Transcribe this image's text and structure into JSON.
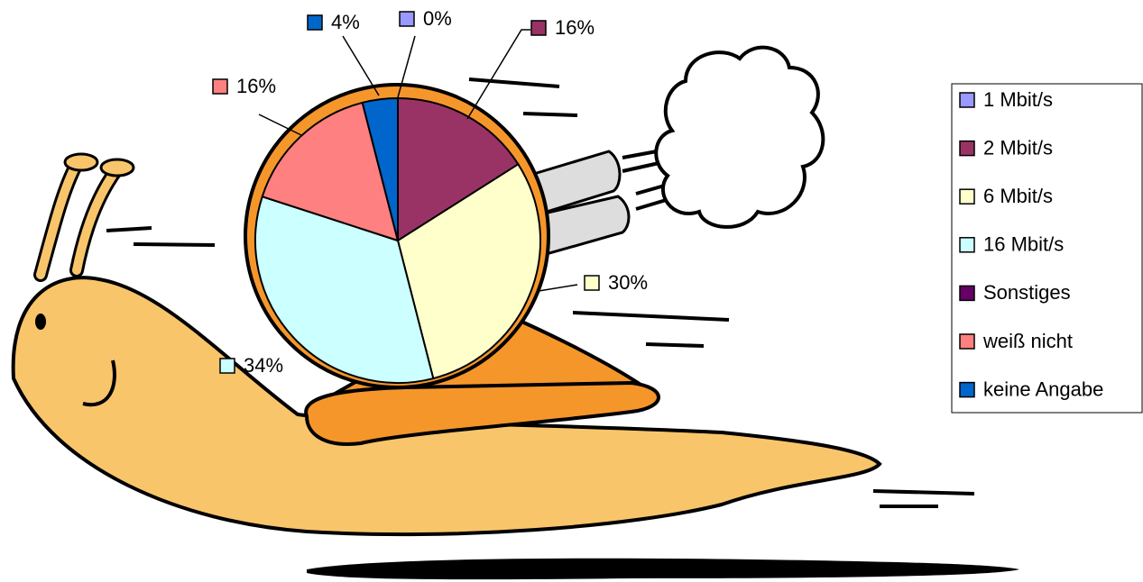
{
  "chart_data": {
    "type": "pie",
    "categories": [
      "1 Mbit/s",
      "2 Mbit/s",
      "6 Mbit/s",
      "16 Mbit/s",
      "Sonstiges",
      "weiß nicht",
      "keine Angabe"
    ],
    "values": [
      0,
      16,
      30,
      34,
      0,
      16,
      4
    ],
    "value_labels": [
      "0%",
      "16%",
      "30%",
      "34%",
      null,
      "16%",
      "4%"
    ],
    "colors": [
      "#9999ff",
      "#993366",
      "#ffffcc",
      "#ccffff",
      "#660066",
      "#ff8080",
      "#0066cc"
    ],
    "legend": "right"
  }
}
